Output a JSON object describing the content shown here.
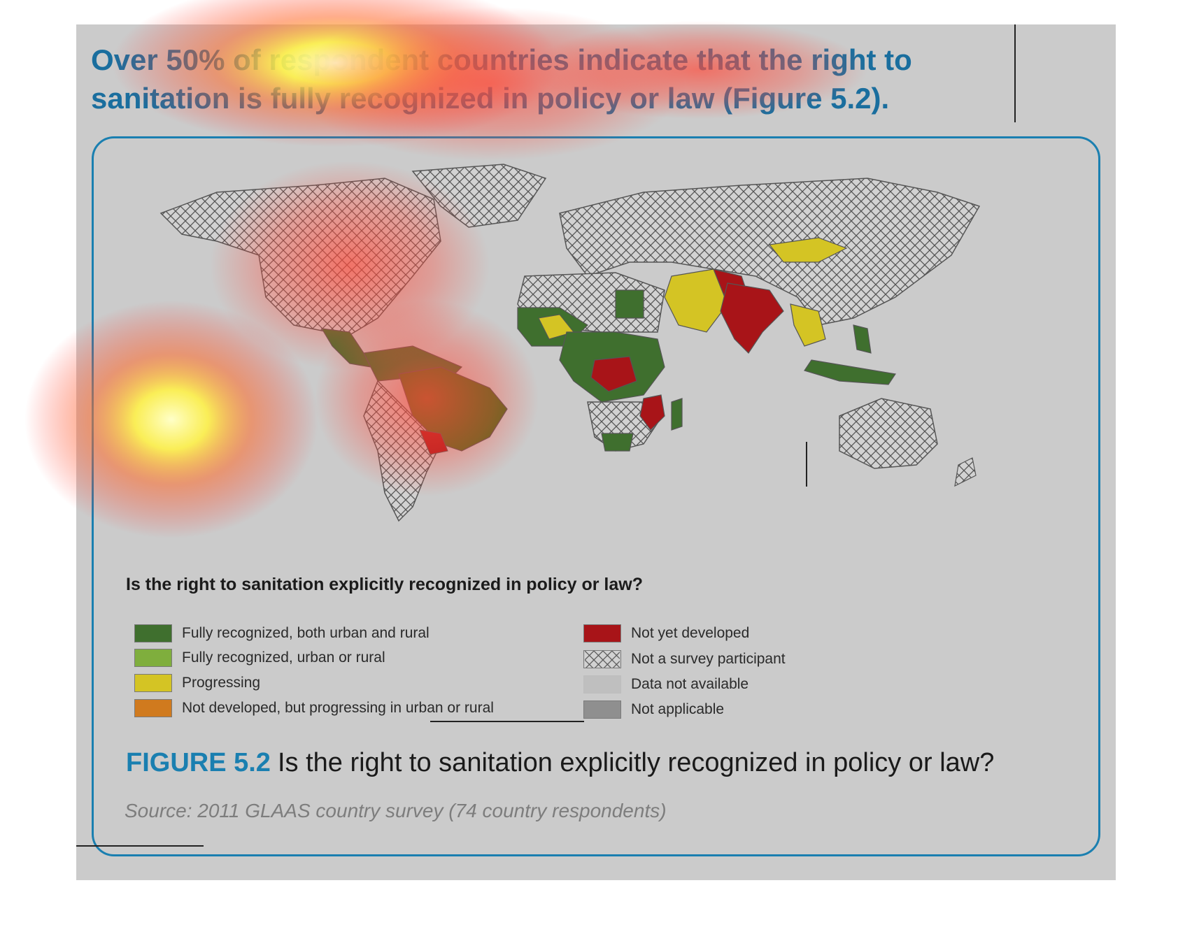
{
  "headline": "Over 50% of respondent countries indicate that the right to sanitation is fully recognized in policy or law (Figure 5.2).",
  "legend": {
    "title": "Is the right to sanitation explicitly recognized in policy or law?",
    "items": [
      {
        "label": "Fully recognized, both urban and rural",
        "color": "#3f6f2e"
      },
      {
        "label": "Fully recognized, urban or rural",
        "color": "#7fae3d"
      },
      {
        "label": "Progressing",
        "color": "#d4c424"
      },
      {
        "label": "Not developed, but progressing in urban or rural",
        "color": "#d07a1e"
      },
      {
        "label": "Not yet developed",
        "color": "#a81418"
      },
      {
        "label": "Not a survey participant",
        "color": "hatch"
      },
      {
        "label": "Data not available",
        "color": "#bfbfbf"
      },
      {
        "label": "Not applicable",
        "color": "#8f8f8f"
      }
    ]
  },
  "caption": {
    "figure_label": "FIGURE 5.2",
    "text": "Is the right to sanitation explicitly recognized in policy or law?"
  },
  "source": "Source: 2011 GLAAS country survey (74 country respondents)",
  "colors": {
    "accent": "#1a7fb0",
    "panel_background": "#cbcbcb"
  }
}
